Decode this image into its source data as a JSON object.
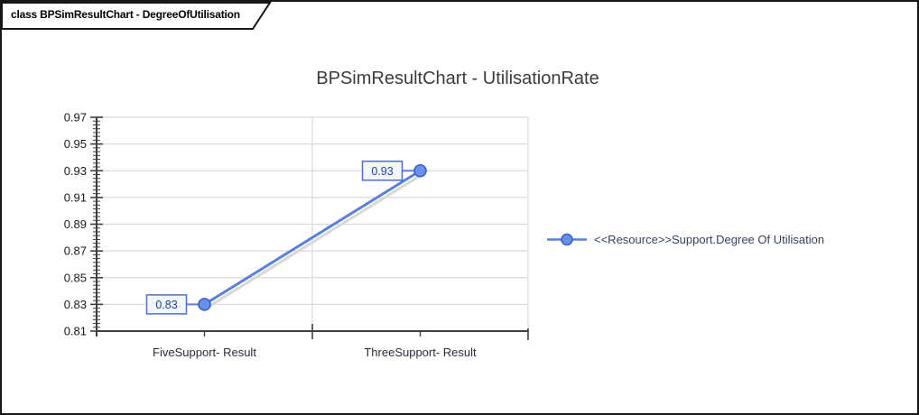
{
  "frame": {
    "tab_label": "class BPSimResultChart - DegreeOfUtilisation"
  },
  "chart_data": {
    "type": "line",
    "title": "BPSimResultChart - UtilisationRate",
    "categories": [
      "FiveSupport- Result",
      "ThreeSupport- Result"
    ],
    "series": [
      {
        "name": "<<Resource>>Support.Degree Of Utilisation",
        "values": [
          0.83,
          0.93
        ],
        "point_labels": [
          "0.83",
          "0.93"
        ]
      }
    ],
    "ylim": [
      0.81,
      0.97
    ],
    "ytick_step": 0.02,
    "ytick_labels": [
      "0.81",
      "0.83",
      "0.85",
      "0.87",
      "0.89",
      "0.91",
      "0.93",
      "0.95",
      "0.97"
    ],
    "grid": true,
    "legend_position": "right",
    "colors": {
      "line": "#5b7fe0",
      "line_shadow": "#d8d8d8",
      "marker_fill": "#6a8fe8",
      "marker_stroke": "#3a5fc8",
      "point_label_fill": "#f2f6fd",
      "point_label_border": "#4a70d2",
      "point_label_text": "#26429b",
      "grid_color": "#dadada",
      "axis_color": "#3f3f3f",
      "ytick_text": "#1a1a1a",
      "xtick_text": "#2c2c3c",
      "legend_text": "#36425c",
      "title_text": "#3c3c3c"
    }
  }
}
